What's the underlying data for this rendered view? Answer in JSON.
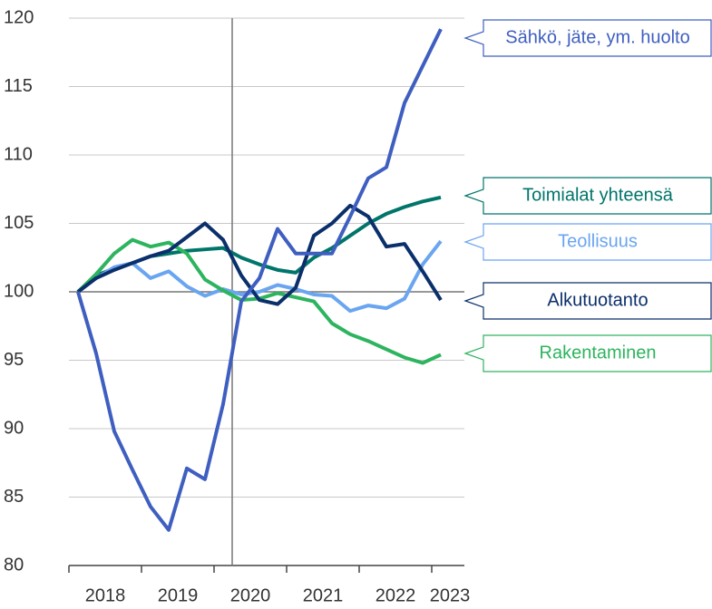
{
  "chart_data": {
    "type": "line",
    "x": [
      2018.125,
      2018.375,
      2018.625,
      2018.875,
      2019.125,
      2019.375,
      2019.625,
      2019.875,
      2020.125,
      2020.375,
      2020.625,
      2020.875,
      2021.125,
      2021.375,
      2021.625,
      2021.875,
      2022.125,
      2022.375,
      2022.625,
      2022.875,
      2023.125
    ],
    "xlim": [
      2018,
      2023.45
    ],
    "xticks": [
      2018,
      2019,
      2020,
      2021,
      2022,
      2023
    ],
    "xtick_labels": [
      "2018",
      "2019",
      "2020",
      "2021",
      "2022",
      "2023"
    ],
    "vline": 2020.25,
    "ylim": [
      80,
      120
    ],
    "yticks": [
      80,
      85,
      90,
      95,
      100,
      105,
      110,
      115,
      120
    ],
    "reference_line": 100,
    "grid": true,
    "legend": "right",
    "series": [
      {
        "name": "Sähkö, jäte, ym. huolto",
        "color": "#3f5fc0",
        "values": [
          100,
          95.5,
          89.8,
          87,
          84.3,
          82.6,
          87.1,
          86.3,
          91.8,
          99.3,
          101,
          104.6,
          102.8,
          102.8,
          102.8,
          105.5,
          108.3,
          109.1,
          113.8,
          116.5,
          119.2
        ]
      },
      {
        "name": "Toimialat yhteensä",
        "color": "#00756a",
        "values": [
          100,
          101.2,
          101.7,
          102.1,
          102.6,
          102.8,
          103,
          103.1,
          103.2,
          102.5,
          102,
          101.6,
          101.4,
          102.5,
          103.2,
          104.1,
          105,
          105.7,
          106.2,
          106.6,
          106.9
        ]
      },
      {
        "name": "Teollisuus",
        "color": "#6aa5f0",
        "values": [
          100,
          101,
          101.8,
          102.1,
          101,
          101.5,
          100.4,
          99.7,
          100.2,
          99.8,
          100,
          100.5,
          100.2,
          99.8,
          99.7,
          98.6,
          99,
          98.8,
          99.5,
          102,
          103.7
        ]
      },
      {
        "name": "Alkutuotanto",
        "color": "#0b2f6b",
        "values": [
          100,
          101,
          101.6,
          102.1,
          102.6,
          103,
          104,
          105,
          103.8,
          101.2,
          99.4,
          99.1,
          100.3,
          104.1,
          105,
          106.3,
          105.5,
          103.3,
          103.5,
          101.5,
          99.4
        ]
      },
      {
        "name": "Rakentaminen",
        "color": "#2db45e",
        "values": [
          100,
          101.3,
          102.8,
          103.8,
          103.3,
          103.6,
          102.8,
          100.9,
          100.1,
          99.4,
          99.5,
          99.9,
          99.6,
          99.3,
          97.7,
          96.9,
          96.4,
          95.8,
          95.2,
          94.8,
          95.4
        ]
      }
    ]
  }
}
